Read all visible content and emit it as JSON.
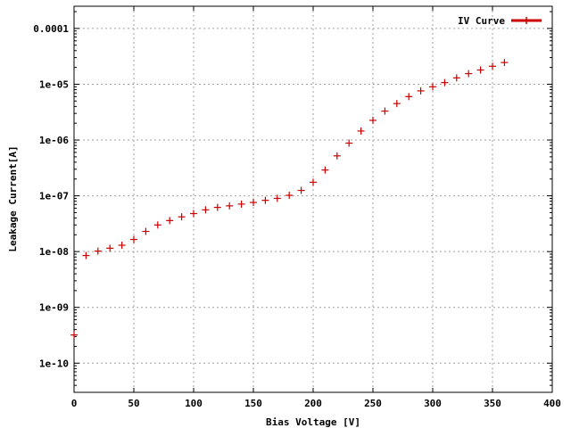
{
  "chart_data": {
    "type": "scatter",
    "title": "",
    "xlabel": "Bias Voltage [V]",
    "ylabel": "Leakage Current[A]",
    "xlim": [
      0,
      400
    ],
    "ylim": [
      3e-11,
      0.00025
    ],
    "yscale": "log",
    "grid": true,
    "legend_position": "top-right",
    "x_ticks": [
      0,
      50,
      100,
      150,
      200,
      250,
      300,
      350,
      400
    ],
    "x_tick_labels": [
      "0",
      "50",
      "100",
      "150",
      "200",
      "250",
      "300",
      "350",
      "400"
    ],
    "y_ticks": [
      1e-10,
      1e-09,
      1e-08,
      1e-07,
      1e-06,
      1e-05,
      0.0001
    ],
    "y_tick_labels": [
      "1e-10",
      "1e-09",
      "1e-08",
      "1e-07",
      "1e-06",
      "1e-05",
      "0.0001"
    ],
    "series_color": "#cc0000",
    "series": [
      {
        "name": "IV Curve",
        "x": [
          0,
          10,
          20,
          30,
          40,
          50,
          60,
          70,
          80,
          90,
          100,
          110,
          120,
          130,
          140,
          150,
          160,
          170,
          180,
          190,
          200,
          210,
          220,
          230,
          240,
          250,
          260,
          270,
          280,
          290,
          300,
          310,
          320,
          330,
          340,
          350,
          360
        ],
        "y": [
          3.2e-10,
          8.5e-09,
          1.02e-08,
          1.15e-08,
          1.3e-08,
          1.65e-08,
          2.3e-08,
          3e-08,
          3.6e-08,
          4.2e-08,
          4.8e-08,
          5.6e-08,
          6.2e-08,
          6.6e-08,
          7.1e-08,
          7.6e-08,
          8.3e-08,
          9e-08,
          1.02e-07,
          1.25e-07,
          1.75e-07,
          2.9e-07,
          5.2e-07,
          8.8e-07,
          1.45e-06,
          2.25e-06,
          3.3e-06,
          4.5e-06,
          6e-06,
          7.6e-06,
          9e-06,
          1.07e-05,
          1.3e-05,
          1.55e-05,
          1.8e-05,
          2.1e-05,
          2.45e-05
        ]
      }
    ]
  }
}
